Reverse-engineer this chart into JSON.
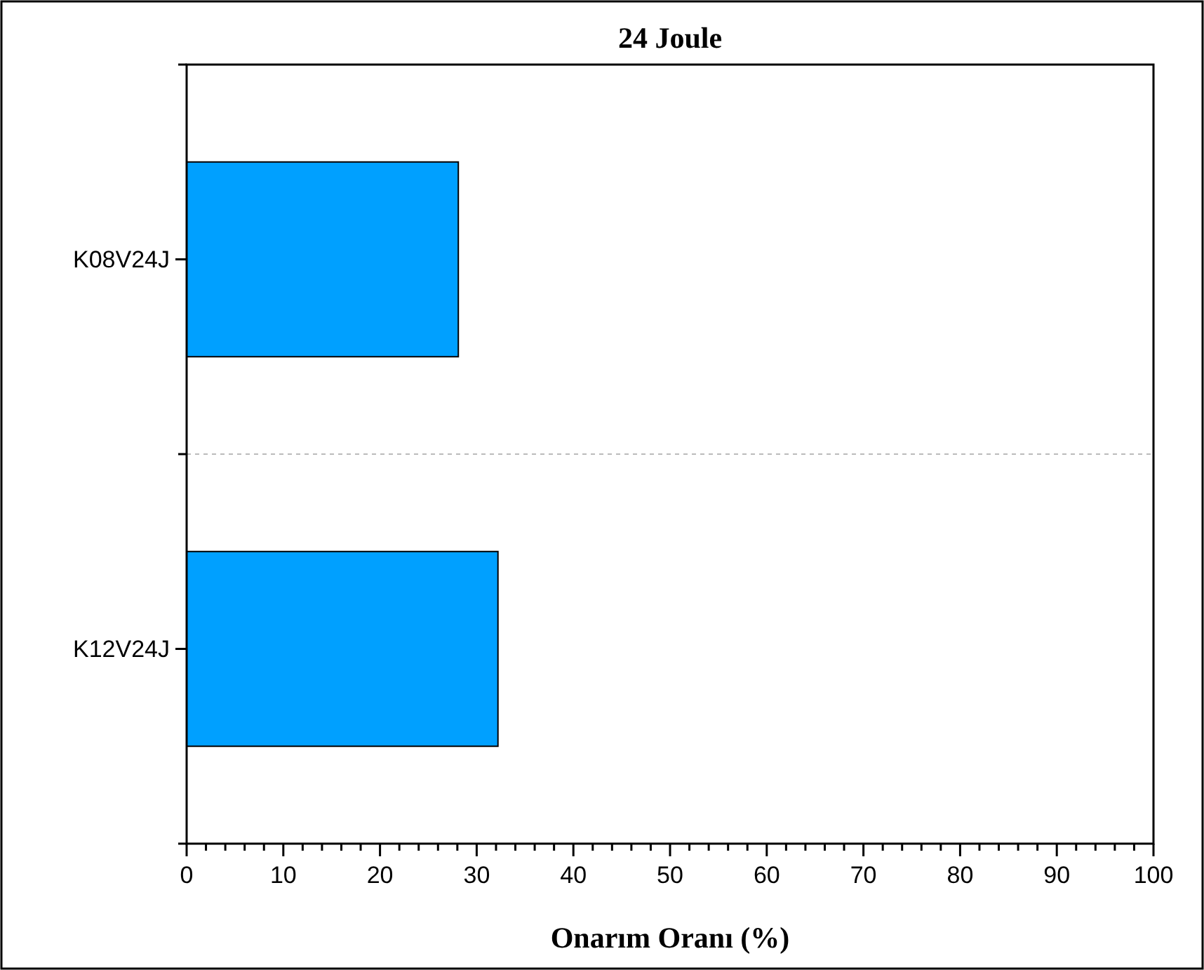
{
  "chart_data": {
    "type": "bar",
    "orientation": "horizontal",
    "title": "24 Joule",
    "xlabel": "Onarım Oranı (%)",
    "categories": [
      "K08V24J",
      "K12V24J"
    ],
    "values": [
      28.1,
      32.2
    ],
    "color": "#00a0ff",
    "xlim": [
      0,
      100
    ],
    "xticks": [
      0,
      {
        "value": 2,
        "label": null
      },
      {
        "value": 4,
        "label": null
      },
      {
        "value": 6,
        "label": null
      },
      {
        "value": 8,
        "label": null
      },
      10,
      {
        "value": 12,
        "label": null
      },
      {
        "value": 14,
        "label": null
      },
      {
        "value": 16,
        "label": null
      },
      {
        "value": 18,
        "label": null
      },
      20,
      {
        "value": 22,
        "label": null
      },
      {
        "value": 24,
        "label": null
      },
      {
        "value": 26,
        "label": null
      },
      {
        "value": 28,
        "label": null
      },
      30,
      {
        "value": 32,
        "label": null
      },
      {
        "value": 34,
        "label": null
      },
      {
        "value": 36,
        "label": null
      },
      {
        "value": 38,
        "label": null
      },
      40,
      {
        "value": 42,
        "label": null
      },
      {
        "value": 44,
        "label": null
      },
      {
        "value": 46,
        "label": null
      },
      {
        "value": 48,
        "label": null
      },
      50,
      {
        "value": 52,
        "label": null
      },
      {
        "value": 54,
        "label": null
      },
      {
        "value": 56,
        "label": null
      },
      {
        "value": 58,
        "label": null
      },
      60,
      {
        "value": 62,
        "label": null
      },
      {
        "value": 64,
        "label": null
      },
      {
        "value": 66,
        "label": null
      },
      {
        "value": 68,
        "label": null
      },
      70,
      {
        "value": 72,
        "label": null
      },
      {
        "value": 74,
        "label": null
      },
      {
        "value": 76,
        "label": null
      },
      {
        "value": 78,
        "label": null
      },
      80,
      {
        "value": 82,
        "label": null
      },
      {
        "value": 84,
        "label": null
      },
      {
        "value": 86,
        "label": null
      },
      {
        "value": 88,
        "label": null
      },
      90,
      {
        "value": 92,
        "label": null
      },
      {
        "value": 94,
        "label": null
      },
      {
        "value": 96,
        "label": null
      },
      {
        "value": 98,
        "label": null
      },
      100
    ],
    "grid": "y"
  }
}
